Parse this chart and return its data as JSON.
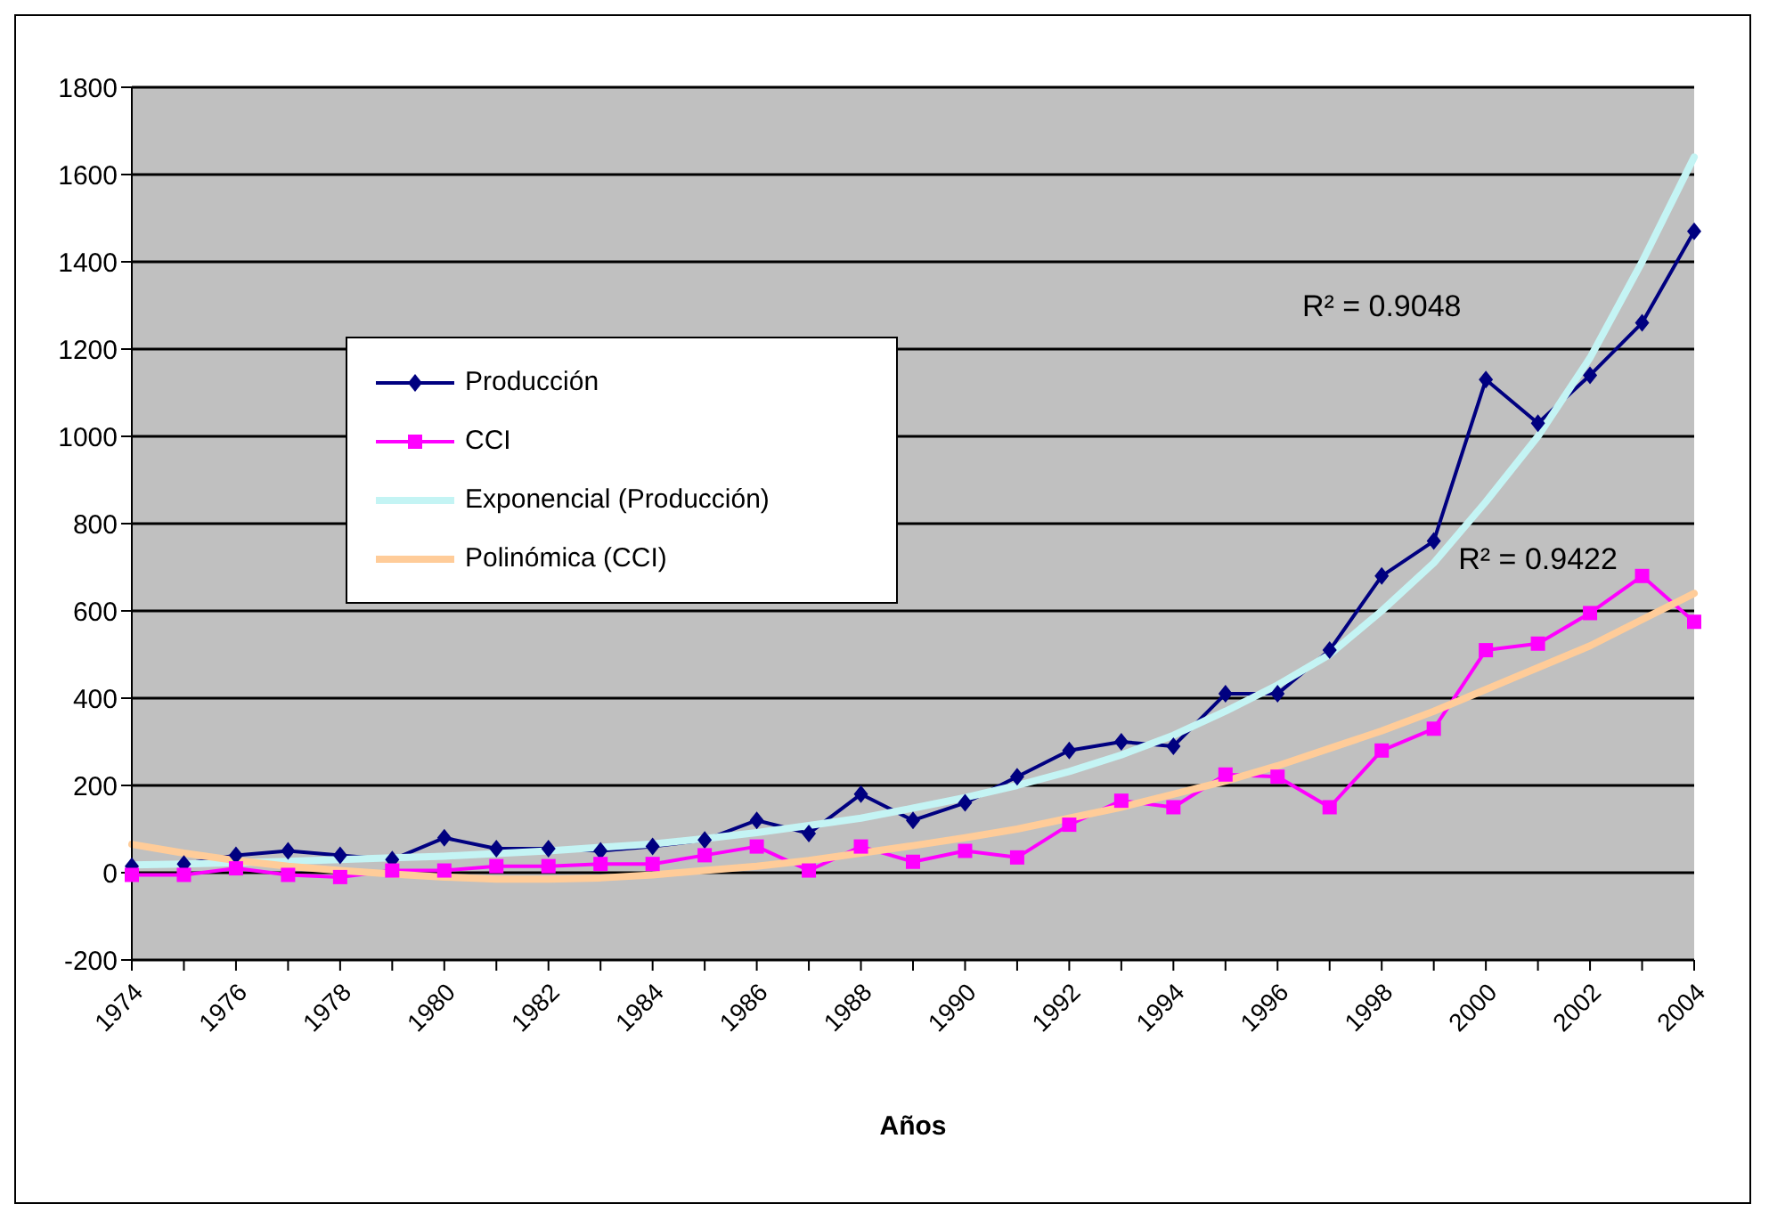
{
  "chart_data": {
    "type": "line",
    "xlabel": "Años",
    "categories": [
      "1974",
      null,
      "1976",
      null,
      "1978",
      null,
      "1980",
      null,
      "1982",
      null,
      "1984",
      null,
      "1986",
      null,
      "1988",
      null,
      "1990",
      null,
      "1992",
      null,
      "1994",
      null,
      "1996",
      null,
      "1998",
      null,
      "2000",
      null,
      "2002",
      null,
      "2004"
    ],
    "series": [
      {
        "name": "Producción",
        "color": "#000080",
        "marker": "diamond",
        "values": [
          15,
          20,
          40,
          50,
          40,
          30,
          80,
          55,
          55,
          50,
          60,
          75,
          120,
          90,
          180,
          120,
          160,
          220,
          280,
          300,
          290,
          410,
          410,
          510,
          680,
          760,
          1130,
          1030,
          1140,
          1260,
          1470
        ]
      },
      {
        "name": "CCI",
        "color": "#ff00ff",
        "marker": "square",
        "values": [
          -5,
          -5,
          10,
          -5,
          -10,
          5,
          5,
          15,
          15,
          20,
          20,
          40,
          60,
          5,
          60,
          25,
          50,
          35,
          110,
          165,
          150,
          225,
          220,
          150,
          280,
          330,
          510,
          525,
          595,
          680,
          575
        ]
      },
      {
        "name": "Exponencial (Producción)",
        "color": "#c4f4f4",
        "marker": "none",
        "values": [
          18,
          20,
          23,
          26,
          30,
          34,
          38,
          44,
          50,
          58,
          66,
          78,
          92,
          108,
          125,
          148,
          172,
          200,
          232,
          270,
          315,
          370,
          430,
          500,
          600,
          710,
          850,
          1000,
          1180,
          1400,
          1640
        ]
      },
      {
        "name": "Polinómica (CCI)",
        "color": "#ffcc99",
        "marker": "none",
        "values": [
          65,
          45,
          28,
          15,
          5,
          -3,
          -10,
          -15,
          -15,
          -12,
          -5,
          5,
          15,
          28,
          45,
          62,
          80,
          100,
          125,
          150,
          180,
          210,
          245,
          285,
          325,
          370,
          420,
          470,
          520,
          580,
          640
        ]
      }
    ],
    "ylim": [
      -200,
      1800
    ],
    "yticks": [
      -200,
      0,
      200,
      400,
      600,
      800,
      1000,
      1200,
      1400,
      1600,
      1800
    ],
    "grid": "y",
    "legend": "top left",
    "line_style": "solid",
    "annotations": [
      "R² = 0.9048",
      "R² = 0.9422"
    ]
  }
}
